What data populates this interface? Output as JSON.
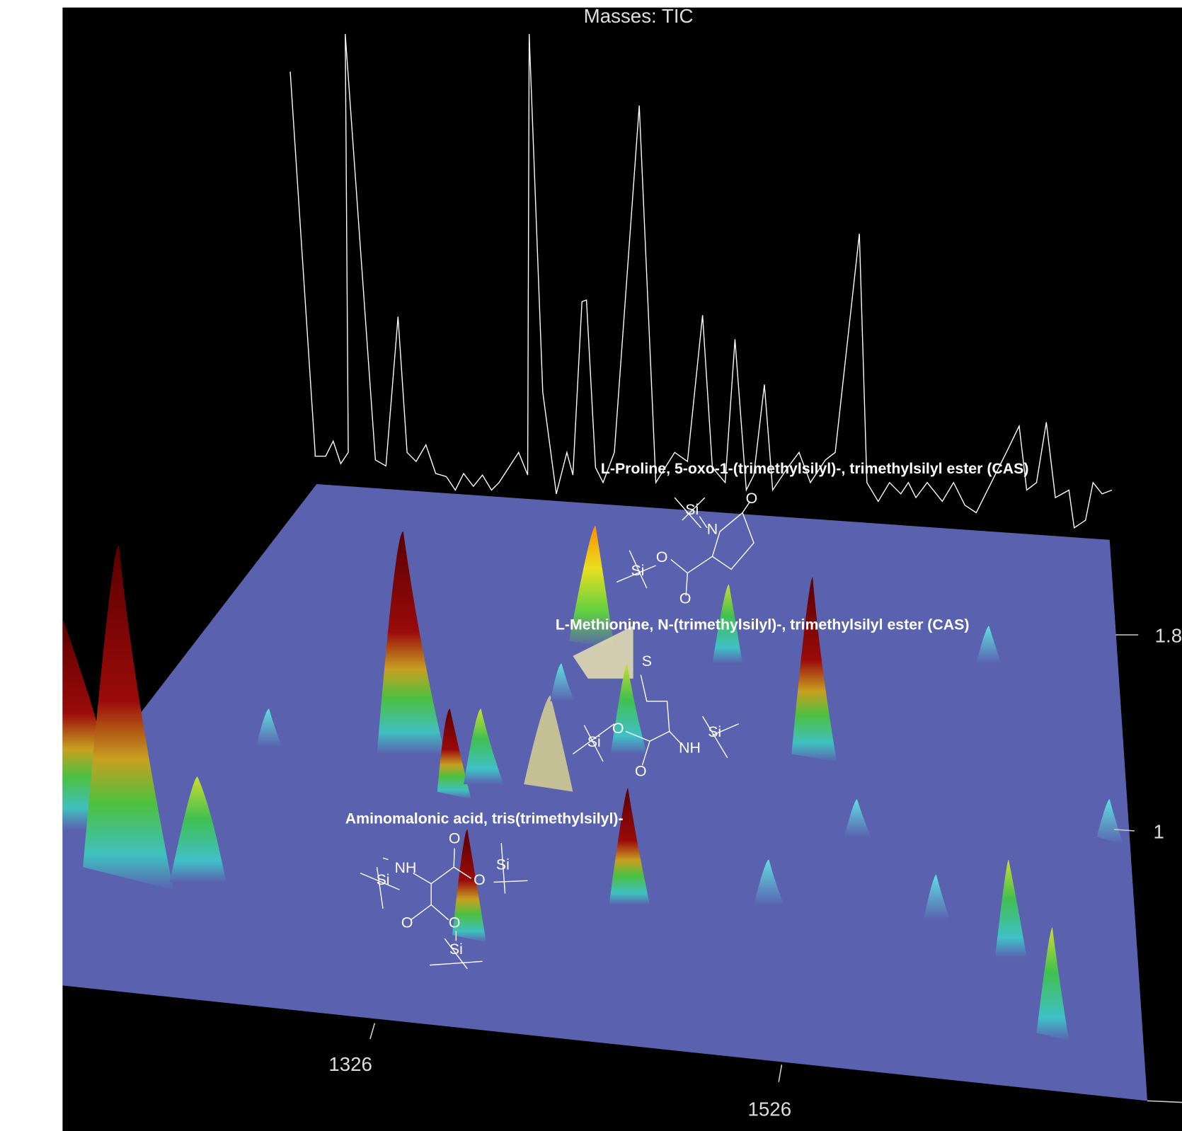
{
  "header": {
    "title": "Masses:  TIC"
  },
  "axis": {
    "x_ticks": [
      "1326",
      "1526"
    ],
    "y_ticks": [
      "1.8",
      "1"
    ]
  },
  "compounds": [
    {
      "name": "L-Proline, 5-oxo-1-(trimethylsilyl)-, trimethylsilyl ester (CAS)",
      "atoms": [
        "Si",
        "N",
        "O",
        "O",
        "Si",
        "O"
      ]
    },
    {
      "name": "L-Methionine, N-(trimethylsilyl)-, trimethylsilyl ester (CAS)",
      "atoms": [
        "S",
        "Si",
        "O",
        "NH",
        "Si",
        "O"
      ]
    },
    {
      "name": "Aminomalonic acid, tris(trimethylsilyl)-",
      "atoms": [
        "NH",
        "Si",
        "O",
        "O",
        "Si",
        "O",
        "O",
        "Si"
      ]
    }
  ]
}
